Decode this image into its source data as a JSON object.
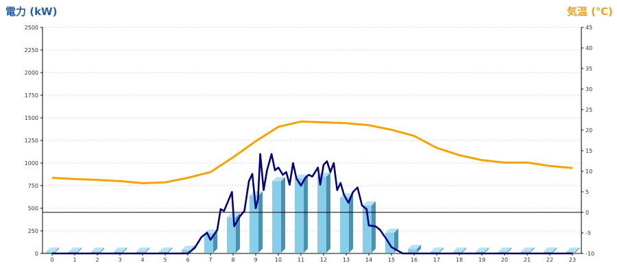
{
  "chart_data": {
    "type": "bar",
    "left_axis_title": "電力 (kW)",
    "right_axis_title": "気温 (℃)",
    "x_categories": [
      "0",
      "1",
      "2",
      "3",
      "4",
      "5",
      "6",
      "7",
      "8",
      "9",
      "10",
      "11",
      "12",
      "13",
      "14",
      "15",
      "16",
      "17",
      "18",
      "19",
      "20",
      "21",
      "22",
      "23"
    ],
    "left_axis": {
      "min": 0,
      "max": 2500,
      "ticks": [
        0,
        250,
        500,
        750,
        1000,
        1250,
        1500,
        1750,
        2000,
        2250,
        2500
      ]
    },
    "right_axis": {
      "min": -10,
      "max": 45,
      "ticks": [
        -10,
        -5,
        0,
        5,
        10,
        15,
        20,
        25,
        30,
        35,
        40,
        45
      ]
    },
    "grid": true,
    "series": [
      {
        "kind": "bar",
        "axis": "left",
        "color": "#87ceeb",
        "values": [
          20,
          20,
          20,
          20,
          20,
          20,
          40,
          220,
          400,
          640,
          800,
          830,
          850,
          620,
          530,
          230,
          50,
          20,
          20,
          20,
          20,
          20,
          20,
          20
        ]
      },
      {
        "kind": "line",
        "axis": "left",
        "color": "#000080",
        "points": [
          [
            0,
            0
          ],
          [
            1,
            0
          ],
          [
            2,
            0
          ],
          [
            3,
            0
          ],
          [
            4,
            0
          ],
          [
            5,
            0
          ],
          [
            6,
            0
          ],
          [
            6.3,
            60
          ],
          [
            6.6,
            180
          ],
          [
            6.85,
            230
          ],
          [
            7.0,
            150
          ],
          [
            7.3,
            260
          ],
          [
            7.45,
            490
          ],
          [
            7.6,
            470
          ],
          [
            7.8,
            590
          ],
          [
            7.95,
            680
          ],
          [
            8.05,
            300
          ],
          [
            8.3,
            410
          ],
          [
            8.5,
            470
          ],
          [
            8.7,
            800
          ],
          [
            8.85,
            880
          ],
          [
            9.0,
            500
          ],
          [
            9.1,
            600
          ],
          [
            9.2,
            1100
          ],
          [
            9.35,
            700
          ],
          [
            9.5,
            920
          ],
          [
            9.7,
            1100
          ],
          [
            9.85,
            920
          ],
          [
            10.0,
            950
          ],
          [
            10.2,
            870
          ],
          [
            10.35,
            900
          ],
          [
            10.5,
            760
          ],
          [
            10.65,
            1000
          ],
          [
            10.8,
            830
          ],
          [
            11.0,
            750
          ],
          [
            11.2,
            840
          ],
          [
            11.35,
            870
          ],
          [
            11.5,
            850
          ],
          [
            11.75,
            950
          ],
          [
            11.85,
            760
          ],
          [
            12.0,
            980
          ],
          [
            12.15,
            1020
          ],
          [
            12.3,
            900
          ],
          [
            12.45,
            1000
          ],
          [
            12.6,
            700
          ],
          [
            12.75,
            780
          ],
          [
            12.9,
            650
          ],
          [
            13.1,
            560
          ],
          [
            13.3,
            680
          ],
          [
            13.5,
            730
          ],
          [
            13.7,
            530
          ],
          [
            13.9,
            490
          ],
          [
            14.0,
            310
          ],
          [
            14.3,
            300
          ],
          [
            14.5,
            260
          ],
          [
            14.8,
            150
          ],
          [
            15.0,
            70
          ],
          [
            15.5,
            0
          ],
          [
            16,
            0
          ],
          [
            17,
            0
          ],
          [
            18,
            0
          ],
          [
            19,
            0
          ],
          [
            20,
            0
          ],
          [
            21,
            0
          ],
          [
            22,
            0
          ],
          [
            23,
            0
          ]
        ]
      },
      {
        "kind": "line",
        "axis": "right",
        "color": "#f5a300",
        "values": [
          8.4,
          8.1,
          7.9,
          7.6,
          7.1,
          7.3,
          8.4,
          9.8,
          13.4,
          17.3,
          20.8,
          22.1,
          21.9,
          21.7,
          21.2,
          20.1,
          18.6,
          15.7,
          13.9,
          12.7,
          12.1,
          12.1,
          11.3,
          10.8
        ]
      }
    ]
  }
}
